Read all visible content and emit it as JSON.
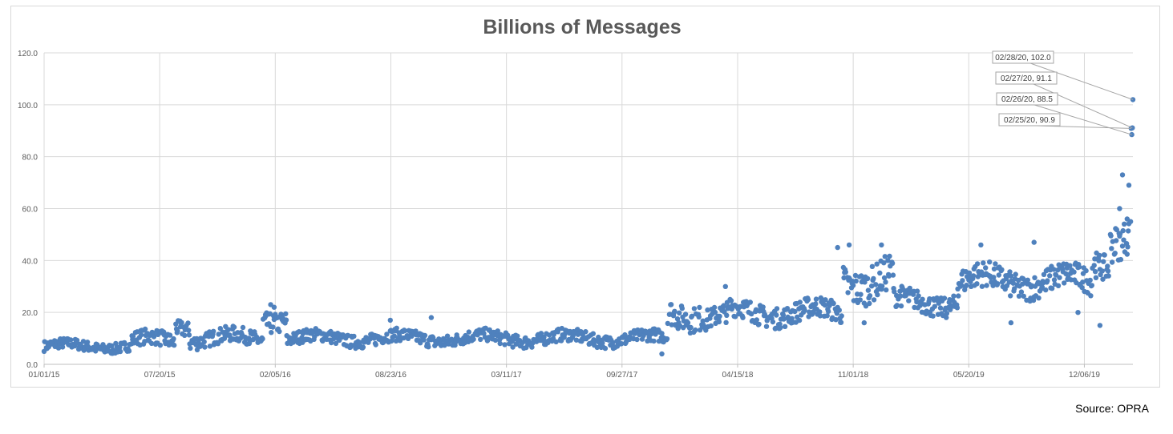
{
  "chart_data": {
    "type": "scatter",
    "title": "Billions of Messages",
    "xlabel": "",
    "ylabel": "",
    "x_range": [
      "01/01/15",
      "02/28/20"
    ],
    "ylim": [
      0,
      120
    ],
    "y_ticks": [
      "0.0",
      "20.0",
      "40.0",
      "60.0",
      "80.0",
      "100.0",
      "120.0"
    ],
    "x_ticks": [
      "01/01/15",
      "07/20/15",
      "02/05/16",
      "08/23/16",
      "03/11/17",
      "09/27/17",
      "04/15/18",
      "11/01/18",
      "05/20/19",
      "12/06/19"
    ],
    "grid": true,
    "legend": "none",
    "marker_color": "#4f81bd",
    "annotations": [
      {
        "label": "02/28/20, 102.0",
        "x": "02/28/20",
        "y": 102.0
      },
      {
        "label": "02/27/20, 91.1",
        "x": "02/27/20",
        "y": 91.1
      },
      {
        "label": "02/26/20, 88.5",
        "x": "02/26/20",
        "y": 88.5
      },
      {
        "label": "02/25/20, 90.9",
        "x": "02/25/20",
        "y": 90.9
      }
    ],
    "trend_segments": [
      {
        "from": "01/01/15",
        "to": "06/01/15",
        "level": 7,
        "spread": 2
      },
      {
        "from": "06/01/15",
        "to": "08/15/15",
        "level": 9,
        "spread": 3
      },
      {
        "from": "08/15/15",
        "to": "09/10/15",
        "level": 15,
        "spread": 3
      },
      {
        "from": "09/10/15",
        "to": "01/15/16",
        "level": 10,
        "spread": 3
      },
      {
        "from": "01/15/16",
        "to": "02/25/16",
        "level": 18,
        "spread": 4
      },
      {
        "from": "02/25/16",
        "to": "12/15/17",
        "level": 10,
        "spread": 2.5
      },
      {
        "from": "12/15/17",
        "to": "02/15/18",
        "level": 20,
        "spread": 5
      },
      {
        "from": "02/15/18",
        "to": "04/01/18",
        "level": 18,
        "spread": 4
      },
      {
        "from": "04/01/18",
        "to": "10/15/18",
        "level": 20,
        "spread": 4
      },
      {
        "from": "10/15/18",
        "to": "01/10/19",
        "level": 33,
        "spread": 7
      },
      {
        "from": "01/10/19",
        "to": "05/01/19",
        "level": 24,
        "spread": 4
      },
      {
        "from": "05/01/19",
        "to": "12/20/19",
        "level": 32,
        "spread": 5
      },
      {
        "from": "12/20/19",
        "to": "01/20/20",
        "level": 40,
        "spread": 5
      },
      {
        "from": "01/20/20",
        "to": "02/24/20",
        "level": 50,
        "spread": 7
      }
    ],
    "notable_points": [
      {
        "x": "01/28/16",
        "y": 23
      },
      {
        "x": "02/03/16",
        "y": 22
      },
      {
        "x": "08/22/16",
        "y": 17
      },
      {
        "x": "11/01/16",
        "y": 18
      },
      {
        "x": "12/05/17",
        "y": 4
      },
      {
        "x": "03/25/18",
        "y": 30
      },
      {
        "x": "10/05/18",
        "y": 45
      },
      {
        "x": "10/25/18",
        "y": 46
      },
      {
        "x": "11/20/18",
        "y": 16
      },
      {
        "x": "12/20/18",
        "y": 46
      },
      {
        "x": "06/10/19",
        "y": 46
      },
      {
        "x": "08/01/19",
        "y": 16
      },
      {
        "x": "09/10/19",
        "y": 47
      },
      {
        "x": "11/25/19",
        "y": 20
      },
      {
        "x": "01/02/20",
        "y": 15
      },
      {
        "x": "02/05/20",
        "y": 60
      },
      {
        "x": "02/10/20",
        "y": 73
      },
      {
        "x": "02/18/20",
        "y": 56
      },
      {
        "x": "02/21/20",
        "y": 69
      },
      {
        "x": "02/24/20",
        "y": 55
      },
      {
        "x": "02/25/20",
        "y": 90.9
      },
      {
        "x": "02/26/20",
        "y": 88.5
      },
      {
        "x": "02/27/20",
        "y": 91.1
      },
      {
        "x": "02/28/20",
        "y": 102.0
      }
    ]
  },
  "source": "Source: OPRA"
}
